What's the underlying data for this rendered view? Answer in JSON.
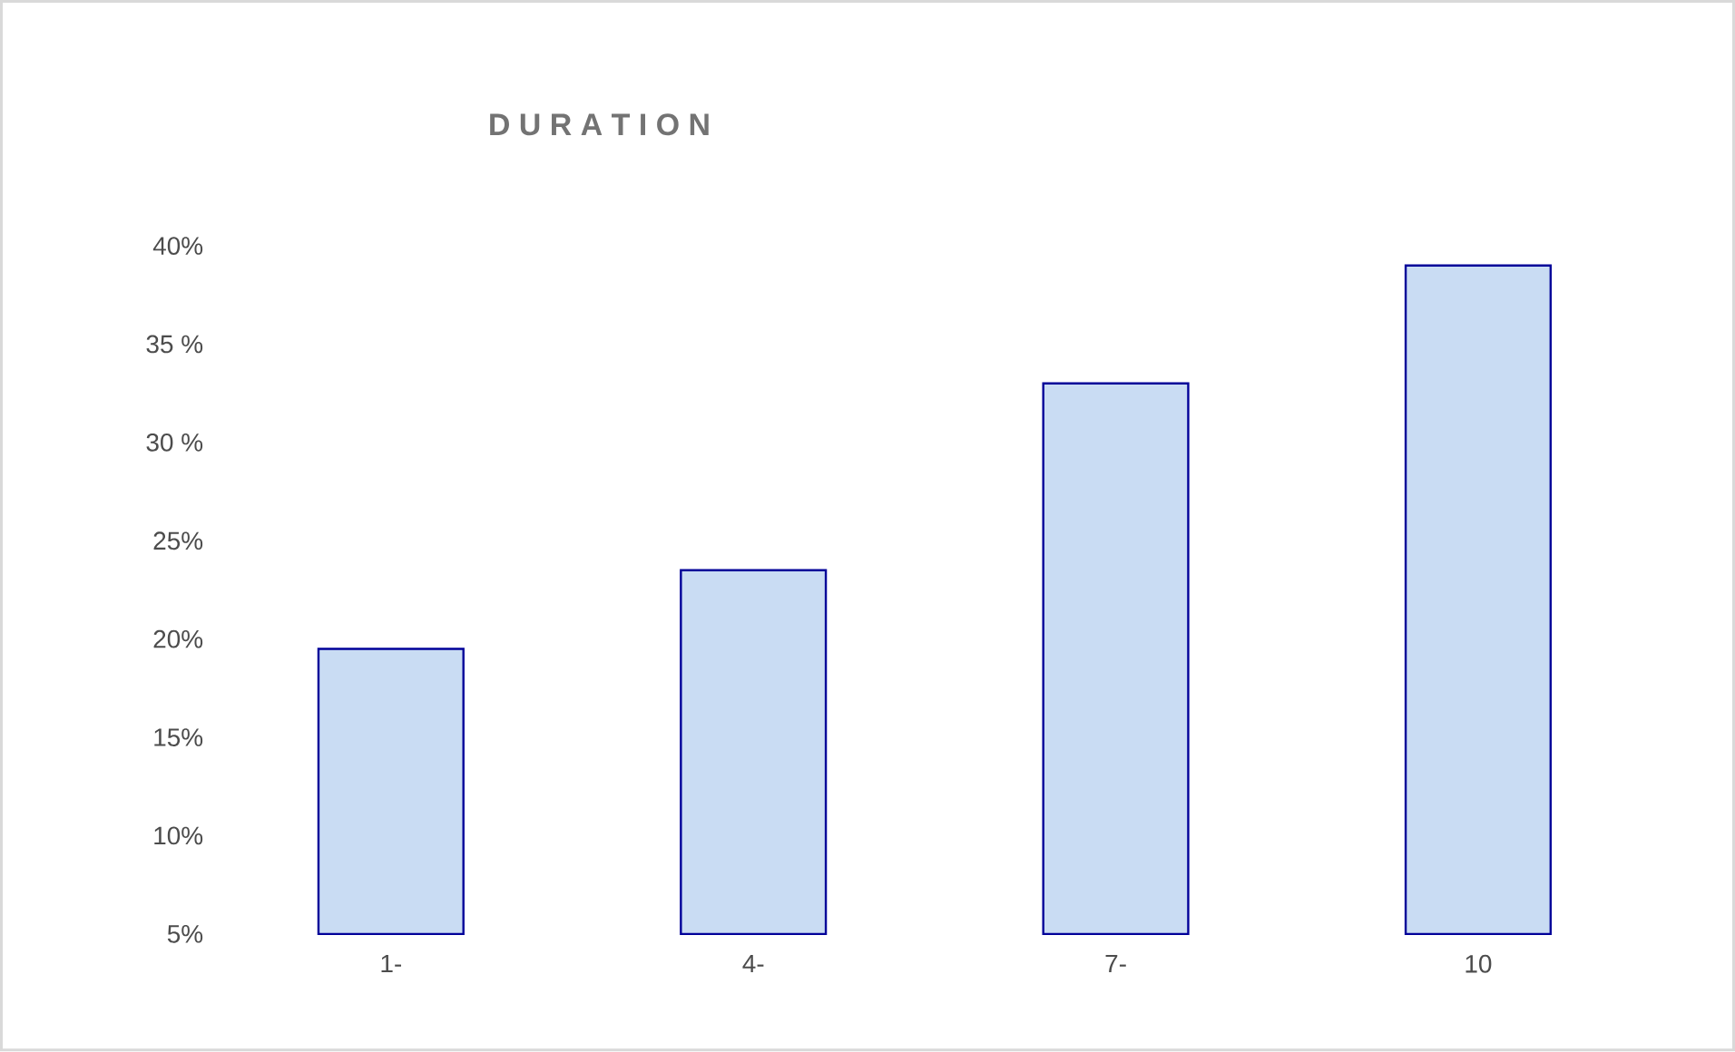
{
  "chart_data": {
    "type": "bar",
    "title": "D U R A T I O N",
    "categories": [
      "1-",
      "4-",
      "7-",
      "10"
    ],
    "values": [
      19.5,
      23.5,
      33,
      39
    ],
    "color": "#c9dcf3",
    "ylim": [
      5,
      40
    ],
    "yticks": [
      {
        "value": 5,
        "label": "5%"
      },
      {
        "value": 10,
        "label": "10%"
      },
      {
        "value": 15,
        "label": "15%"
      },
      {
        "value": 20,
        "label": "20%"
      },
      {
        "value": 25,
        "label": "25%"
      },
      {
        "value": 30,
        "label": "30 %"
      },
      {
        "value": 35,
        "label": "35 %"
      },
      {
        "value": 40,
        "label": "40%"
      }
    ],
    "grid": false
  }
}
